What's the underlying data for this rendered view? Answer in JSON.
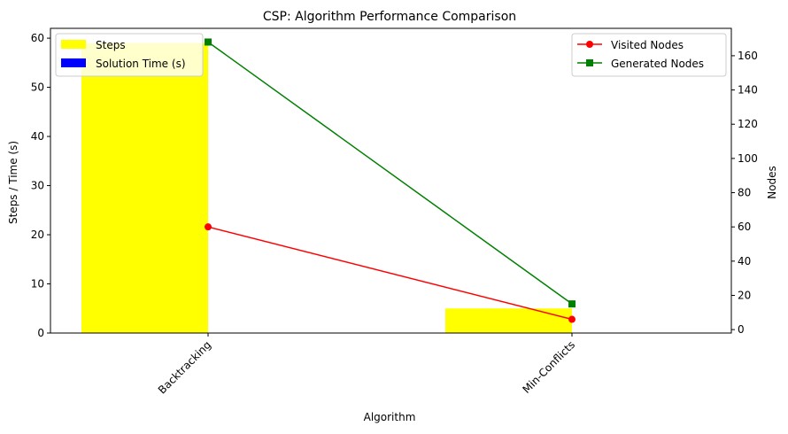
{
  "chart_data": {
    "type": "bar",
    "title": "CSP: Algorithm Performance Comparison",
    "xlabel": "Algorithm",
    "ylabel": "Steps / Time (s)",
    "ylabel_right": "Nodes",
    "categories": [
      "Backtracking",
      "Min-Conflicts"
    ],
    "ylim": [
      0,
      62
    ],
    "ylim_right": [
      -2,
      176
    ],
    "yticks": [
      0,
      10,
      20,
      30,
      40,
      50,
      60
    ],
    "yticks_right": [
      0,
      20,
      40,
      60,
      80,
      100,
      120,
      140,
      160
    ],
    "grid": false,
    "bar_series": [
      {
        "name": "Steps",
        "values": [
          59,
          5
        ],
        "color": "#ffff00"
      },
      {
        "name": "Solution Time (s)",
        "values": [
          0.01,
          0.01
        ],
        "color": "#0000ff"
      }
    ],
    "line_series": [
      {
        "name": "Visited Nodes",
        "values": [
          60,
          6
        ],
        "color": "#ff0000",
        "marker": "circle",
        "axis": "right"
      },
      {
        "name": "Generated Nodes",
        "values": [
          168,
          15
        ],
        "color": "#008000",
        "marker": "square",
        "axis": "right"
      }
    ],
    "legend_left": "top-left",
    "legend_right": "top-right"
  }
}
